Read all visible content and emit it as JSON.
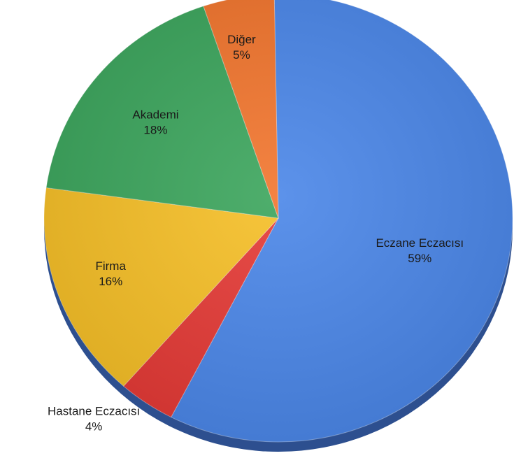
{
  "chart_data": {
    "type": "pie",
    "slices": [
      {
        "label": "Eczane Eczacısı",
        "value": 59,
        "value_label": "59%",
        "color": "#4a86e8"
      },
      {
        "label": "Hastane Eczacısı",
        "value": 4,
        "value_label": "4%",
        "color": "#e53935"
      },
      {
        "label": "Firma",
        "value": 16,
        "value_label": "16%",
        "color": "#f6bf26"
      },
      {
        "label": "Akademi",
        "value": 18,
        "value_label": "18%",
        "color": "#3ba55c"
      },
      {
        "label": "Diğer",
        "value": 5,
        "value_label": "5%",
        "color": "#f2752d"
      }
    ]
  }
}
